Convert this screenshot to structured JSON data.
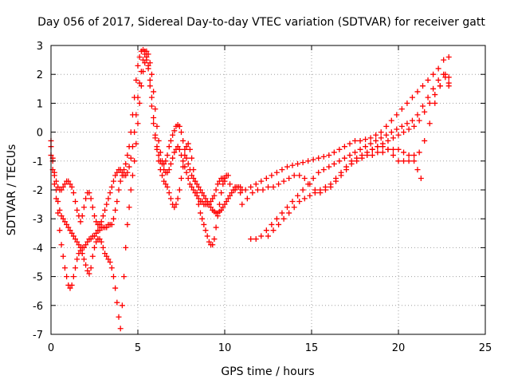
{
  "chart_data": {
    "type": "scatter",
    "title": "Day 056 of 2017, Sidereal Day-to-day VTEC variation (SDTVAR) for receiver gatt",
    "xlabel": "GPS time / hours",
    "ylabel": "SDTVAR / TECUs",
    "xlim": [
      0,
      25
    ],
    "ylim": [
      -7,
      3
    ],
    "xticks": [
      0,
      5,
      10,
      15,
      20,
      25
    ],
    "yticks": [
      -7,
      -6,
      -5,
      -4,
      -3,
      -2,
      -1,
      0,
      1,
      2,
      3
    ],
    "grid": true,
    "marker": "+",
    "color": "#ff0000",
    "series": [
      {
        "x": [
          0.0,
          0.1,
          0.2,
          0.3,
          0.4,
          0.5,
          0.6,
          0.7,
          0.8,
          0.9,
          1.0,
          1.1,
          1.2,
          1.3,
          1.4,
          1.5,
          1.6,
          1.7,
          1.8,
          1.9,
          2.0,
          2.1,
          2.2,
          2.3,
          2.4,
          2.5,
          2.6,
          2.7,
          2.8,
          2.9,
          3.0,
          3.1,
          3.2,
          3.3,
          3.4,
          3.5,
          3.6,
          3.7,
          3.8,
          3.9,
          4.0,
          4.1,
          4.2,
          4.3,
          4.4,
          4.5,
          4.6,
          4.7,
          4.8,
          4.9,
          5.0,
          5.1,
          5.2,
          5.3,
          5.4,
          5.5,
          5.6,
          5.7,
          5.8,
          5.9,
          6.0,
          6.1,
          6.2,
          6.3,
          6.4,
          6.5,
          6.6,
          6.7,
          6.8,
          6.9,
          7.0,
          7.1,
          7.2,
          7.3,
          7.4,
          7.5,
          7.6,
          7.7,
          7.8,
          7.9,
          8.0,
          8.1,
          8.2,
          8.3,
          8.4,
          8.5,
          8.6,
          8.7,
          8.8,
          8.9,
          9.0,
          9.1,
          9.2,
          9.3,
          9.4,
          9.5,
          9.6,
          9.7,
          9.8,
          9.9,
          10.0,
          10.1,
          10.2,
          10.3,
          10.4,
          10.5,
          10.6,
          10.7,
          10.8,
          10.9,
          11.0
        ],
        "y": [
          -0.3,
          -0.9,
          -1.5,
          -2.0,
          -2.4,
          -2.7,
          -2.9,
          -3.0,
          -3.1,
          -3.2,
          -3.3,
          -3.4,
          -3.5,
          -3.6,
          -3.7,
          -3.8,
          -3.9,
          -4.0,
          -4.0,
          -4.0,
          -3.9,
          -3.8,
          -3.7,
          -3.7,
          -3.6,
          -3.6,
          -3.5,
          -3.4,
          -3.4,
          -3.3,
          -3.3,
          -3.3,
          -3.3,
          -3.2,
          -3.2,
          -3.2,
          -3.0,
          -2.7,
          -2.4,
          -2.0,
          -1.7,
          -1.5,
          -1.3,
          -1.1,
          -0.8,
          -0.5,
          0.0,
          0.6,
          1.2,
          1.8,
          2.3,
          2.6,
          2.8,
          2.85,
          2.8,
          2.6,
          2.2,
          1.6,
          0.9,
          0.3,
          -0.2,
          -0.5,
          -0.8,
          -1.0,
          -1.1,
          -1.1,
          -1.0,
          -0.8,
          -0.5,
          -0.3,
          -0.1,
          0.05,
          0.2,
          0.25,
          0.2,
          0.0,
          -0.3,
          -0.6,
          -0.9,
          -1.1,
          -1.3,
          -1.5,
          -1.6,
          -1.7,
          -1.8,
          -1.9,
          -2.0,
          -2.1,
          -2.2,
          -2.3,
          -2.4,
          -2.5,
          -2.6,
          -2.7,
          -2.75,
          -2.8,
          -2.8,
          -2.75,
          -2.7,
          -2.6,
          -2.5,
          -2.4,
          -2.3,
          -2.2,
          -2.1,
          -2.0,
          -1.9,
          -1.9,
          -1.9,
          -1.9,
          -2.0
        ]
      },
      {
        "x": [
          0.0,
          0.1,
          0.2,
          0.3,
          0.4,
          0.5,
          0.6,
          0.7,
          0.8,
          0.9,
          1.0,
          1.1,
          1.2,
          1.3,
          1.4,
          1.5,
          1.6,
          1.7,
          1.8,
          1.9,
          2.0,
          2.1,
          2.2,
          2.3,
          2.4,
          2.5,
          2.6,
          2.7,
          2.8,
          2.9,
          3.0,
          3.1,
          3.2,
          3.3,
          3.4,
          3.5,
          3.6,
          3.7,
          3.8,
          3.9,
          4.0,
          4.1,
          4.2,
          4.3,
          4.4,
          4.5,
          4.6,
          4.7,
          4.8,
          4.9,
          5.0,
          5.1,
          5.2,
          5.3,
          5.4,
          5.5,
          5.6,
          5.7,
          5.8,
          5.9,
          6.0,
          6.1,
          6.2,
          6.3,
          6.4,
          6.5,
          6.6,
          6.7,
          6.8,
          6.9,
          7.0,
          7.1,
          7.2,
          7.3,
          7.4,
          7.5,
          7.6,
          7.7,
          7.8,
          7.9,
          8.0,
          8.1,
          8.2,
          8.3,
          8.4,
          8.5,
          8.6,
          8.7,
          8.8,
          8.9,
          9.0,
          9.1,
          9.2,
          9.3,
          9.4,
          9.5,
          9.6,
          9.7,
          9.8,
          9.9,
          10.0
        ],
        "y": [
          -0.5,
          -1.0,
          -1.4,
          -1.7,
          -1.9,
          -2.0,
          -2.0,
          -1.9,
          -1.8,
          -1.7,
          -1.7,
          -1.8,
          -1.9,
          -2.1,
          -2.4,
          -2.7,
          -2.9,
          -3.1,
          -2.9,
          -2.6,
          -2.3,
          -2.1,
          -2.1,
          -2.3,
          -2.6,
          -2.9,
          -3.1,
          -3.2,
          -3.2,
          -3.1,
          -2.9,
          -2.7,
          -2.5,
          -2.3,
          -2.1,
          -1.9,
          -1.7,
          -1.5,
          -1.4,
          -1.3,
          -1.3,
          -1.4,
          -1.5,
          -1.5,
          -1.4,
          -1.2,
          -0.9,
          -0.5,
          0.0,
          0.6,
          1.2,
          1.7,
          2.1,
          2.5,
          2.7,
          2.8,
          2.7,
          2.4,
          2.0,
          1.4,
          0.8,
          0.2,
          -0.3,
          -0.7,
          -1.0,
          -1.3,
          -1.4,
          -1.4,
          -1.3,
          -1.1,
          -0.9,
          -0.7,
          -0.6,
          -0.5,
          -0.6,
          -0.8,
          -1.0,
          -1.2,
          -1.4,
          -1.6,
          -1.8,
          -1.9,
          -2.0,
          -2.1,
          -2.2,
          -2.3,
          -2.4,
          -2.4,
          -2.5,
          -2.5,
          -2.5,
          -2.5,
          -2.4,
          -2.3,
          -2.2,
          -2.0,
          -1.8,
          -1.7,
          -1.6,
          -1.6,
          -1.7
        ]
      },
      {
        "x": [
          0.0,
          0.1,
          0.2,
          0.3,
          0.4,
          0.5,
          0.6,
          0.7,
          0.8,
          0.9,
          1.0,
          1.1,
          1.2,
          1.3,
          1.4,
          1.5,
          1.6,
          1.7,
          1.8,
          1.9,
          2.0,
          2.1,
          2.2,
          2.3,
          2.4,
          2.5,
          2.6,
          2.7,
          2.8,
          2.9,
          3.0,
          3.1,
          3.2,
          3.3,
          3.4,
          3.5,
          3.6,
          3.7,
          3.8,
          3.9,
          4.0,
          4.1,
          4.2,
          4.3,
          4.4,
          4.5,
          4.6,
          4.7,
          4.8,
          4.9,
          5.0,
          5.1,
          5.2,
          5.3,
          5.4,
          5.5,
          5.6,
          5.7,
          5.8,
          5.9,
          6.0,
          6.1,
          6.2,
          6.3,
          6.4,
          6.5,
          6.6,
          6.7,
          6.8,
          6.9,
          7.0,
          7.1,
          7.2,
          7.3,
          7.4,
          7.5,
          7.6,
          7.7,
          7.8,
          7.9,
          8.0,
          8.1,
          8.2,
          8.3,
          8.4,
          8.5,
          8.6,
          8.7,
          8.8,
          8.9,
          9.0,
          9.1,
          9.2,
          9.3,
          9.4,
          9.5,
          9.6,
          9.7,
          9.8,
          9.9,
          10.0,
          10.1,
          10.2
        ],
        "y": [
          -0.8,
          -1.3,
          -1.8,
          -2.3,
          -2.8,
          -3.4,
          -3.9,
          -4.3,
          -4.7,
          -5.0,
          -5.3,
          -5.4,
          -5.3,
          -5.0,
          -4.7,
          -4.4,
          -4.2,
          -4.1,
          -4.2,
          -4.4,
          -4.6,
          -4.8,
          -4.9,
          -4.7,
          -4.3,
          -4.0,
          -3.8,
          -3.7,
          -3.7,
          -3.8,
          -4.0,
          -4.2,
          -4.3,
          -4.4,
          -4.5,
          -4.7,
          -5.0,
          -5.4,
          -5.9,
          -6.4,
          -6.8,
          -6.0,
          -5.0,
          -4.0,
          -3.2,
          -2.6,
          -2.0,
          -1.5,
          -1.0,
          -0.4,
          0.3,
          1.0,
          1.6,
          2.1,
          2.4,
          2.5,
          2.3,
          1.8,
          1.2,
          0.5,
          -0.1,
          -0.6,
          -1.0,
          -1.3,
          -1.5,
          -1.7,
          -1.8,
          -1.9,
          -2.1,
          -2.3,
          -2.5,
          -2.6,
          -2.5,
          -2.3,
          -2.0,
          -1.6,
          -1.2,
          -0.8,
          -0.5,
          -0.4,
          -0.6,
          -0.9,
          -1.3,
          -1.7,
          -2.1,
          -2.5,
          -2.8,
          -3.0,
          -3.2,
          -3.4,
          -3.6,
          -3.8,
          -3.9,
          -3.9,
          -3.7,
          -3.3,
          -2.9,
          -2.5,
          -2.1,
          -1.8,
          -1.6,
          -1.5,
          -1.5
        ]
      },
      {
        "x": [
          10.0,
          10.3,
          10.6,
          10.9,
          11.2,
          11.5,
          11.8,
          12.1,
          12.4,
          12.7,
          13.0,
          13.3,
          13.6,
          13.9,
          14.2,
          14.5,
          14.8,
          15.1,
          15.4,
          15.7,
          16.0,
          16.3,
          16.6,
          16.9,
          17.2,
          17.5,
          17.8,
          18.1,
          18.4,
          18.7,
          19.0,
          19.3,
          19.6,
          19.9,
          20.2,
          20.5,
          20.8,
          21.1,
          21.4,
          21.7,
          22.0,
          22.3,
          22.6,
          22.9
        ],
        "y": [
          -1.6,
          -1.8,
          -2.0,
          -2.1,
          -2.0,
          -1.9,
          -1.8,
          -1.7,
          -1.6,
          -1.5,
          -1.4,
          -1.3,
          -1.2,
          -1.15,
          -1.1,
          -1.05,
          -1.0,
          -0.95,
          -0.9,
          -0.85,
          -0.8,
          -0.7,
          -0.6,
          -0.5,
          -0.4,
          -0.3,
          -0.3,
          -0.25,
          -0.2,
          -0.1,
          0.0,
          0.2,
          0.4,
          0.6,
          0.8,
          1.0,
          1.2,
          1.4,
          1.6,
          1.8,
          2.0,
          2.2,
          2.5,
          2.6
        ]
      },
      {
        "x": [
          11.0,
          11.3,
          11.6,
          11.9,
          12.2,
          12.5,
          12.8,
          13.1,
          13.4,
          13.7,
          14.0,
          14.3,
          14.6,
          14.9,
          15.2,
          15.5,
          15.8,
          16.1,
          16.4,
          16.7,
          17.0,
          17.3,
          17.6,
          17.9,
          18.2,
          18.5,
          18.8,
          19.1,
          19.4,
          19.7,
          20.0,
          20.3,
          20.6,
          20.9,
          21.2,
          21.5,
          21.8,
          22.1,
          22.4,
          22.7,
          22.9
        ],
        "y": [
          -2.5,
          -2.3,
          -2.1,
          -2.0,
          -2.0,
          -1.9,
          -1.9,
          -1.8,
          -1.7,
          -1.6,
          -1.5,
          -1.5,
          -1.6,
          -1.8,
          -2.0,
          -2.1,
          -2.0,
          -1.9,
          -1.7,
          -1.5,
          -1.3,
          -1.1,
          -1.0,
          -0.9,
          -0.8,
          -0.8,
          -0.7,
          -0.7,
          -0.6,
          -0.6,
          -0.6,
          -0.7,
          -0.8,
          -0.8,
          -0.7,
          -0.3,
          0.3,
          1.0,
          1.6,
          2.0,
          1.9
        ]
      },
      {
        "x": [
          11.5,
          11.8,
          12.1,
          12.4,
          12.7,
          13.0,
          13.3,
          13.6,
          13.9,
          14.2,
          14.5,
          14.8,
          15.1,
          15.4,
          15.7,
          16.0,
          16.3,
          16.6,
          16.9,
          17.2,
          17.5,
          17.8,
          18.1,
          18.4,
          18.7,
          19.0,
          19.3,
          19.6,
          19.9,
          20.2,
          20.5,
          20.8,
          21.1,
          21.4,
          21.7,
          22.0,
          22.3,
          22.6,
          22.9
        ],
        "y": [
          -3.7,
          -3.7,
          -3.6,
          -3.4,
          -3.2,
          -3.0,
          -2.8,
          -2.6,
          -2.4,
          -2.2,
          -2.0,
          -1.8,
          -1.6,
          -1.4,
          -1.3,
          -1.2,
          -1.1,
          -1.0,
          -0.9,
          -0.8,
          -0.7,
          -0.6,
          -0.5,
          -0.4,
          -0.3,
          -0.2,
          -0.1,
          0.0,
          0.1,
          0.2,
          0.3,
          0.4,
          0.6,
          0.9,
          1.2,
          1.5,
          1.8,
          2.0,
          1.7
        ]
      },
      {
        "x": [
          12.5,
          12.8,
          13.1,
          13.4,
          13.7,
          14.0,
          14.3,
          14.6,
          14.9,
          15.2,
          15.5,
          15.8,
          16.1,
          16.4,
          16.7,
          17.0,
          17.3,
          17.6,
          17.9,
          18.2,
          18.5,
          18.8,
          19.1,
          19.4,
          19.7,
          20.0,
          20.3,
          20.6,
          20.9,
          21.2,
          21.5,
          21.8,
          22.1,
          22.4,
          22.7,
          22.9
        ],
        "y": [
          -3.6,
          -3.4,
          -3.2,
          -3.0,
          -2.8,
          -2.6,
          -2.4,
          -2.3,
          -2.2,
          -2.1,
          -2.0,
          -1.9,
          -1.8,
          -1.6,
          -1.4,
          -1.2,
          -1.0,
          -0.9,
          -0.8,
          -0.7,
          -0.6,
          -0.5,
          -0.4,
          -0.3,
          -0.2,
          -0.1,
          0.0,
          0.1,
          0.2,
          0.4,
          0.7,
          1.0,
          1.3,
          1.6,
          1.9,
          1.6
        ]
      },
      {
        "x": [
          18.5,
          18.8,
          19.1,
          19.4,
          19.7,
          20.0,
          20.3,
          20.6,
          20.9,
          21.1,
          21.3
        ],
        "y": [
          -0.6,
          -0.5,
          -0.5,
          -0.6,
          -0.8,
          -1.0,
          -1.0,
          -1.0,
          -1.0,
          -1.3,
          -1.6
        ]
      }
    ]
  }
}
